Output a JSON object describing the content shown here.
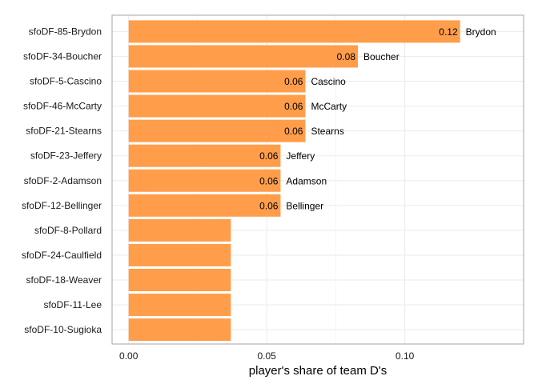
{
  "chart_data": {
    "type": "bar",
    "orientation": "horizontal",
    "categories": [
      "sfoDF-85-Brydon",
      "sfoDF-34-Boucher",
      "sfoDF-5-Cascino",
      "sfoDF-46-McCarty",
      "sfoDF-21-Stearns",
      "sfoDF-23-Jeffery",
      "sfoDF-2-Adamson",
      "sfoDF-12-Bellinger",
      "sfoDF-8-Pollard",
      "sfoDF-24-Caulfield",
      "sfoDF-18-Weaver",
      "sfoDF-11-Lee",
      "sfoDF-10-Sugioka"
    ],
    "values": [
      0.12,
      0.083,
      0.064,
      0.064,
      0.064,
      0.055,
      0.055,
      0.055,
      0.037,
      0.037,
      0.037,
      0.037,
      0.037
    ],
    "value_labels": [
      "0.12",
      "0.08",
      "0.06",
      "0.06",
      "0.06",
      "0.06",
      "0.06",
      "0.06",
      "",
      "",
      "",
      "",
      ""
    ],
    "name_labels": [
      "Brydon",
      "Boucher",
      "Cascino",
      "McCarty",
      "Stearns",
      "Jeffery",
      "Adamson",
      "Bellinger",
      "",
      "",
      "",
      "",
      ""
    ],
    "x_ticks": [
      "0.00",
      "0.05",
      "0.10"
    ],
    "x_tick_values": [
      0,
      0.05,
      0.1
    ],
    "xlim": [
      -0.006,
      0.143
    ],
    "xlabel": "player's share of team D's",
    "ylabel": "",
    "grid": true,
    "bar_color": "#ff9d4a",
    "grid_color": "#ebebeb",
    "panel_border_color": "#a6a6a6"
  }
}
